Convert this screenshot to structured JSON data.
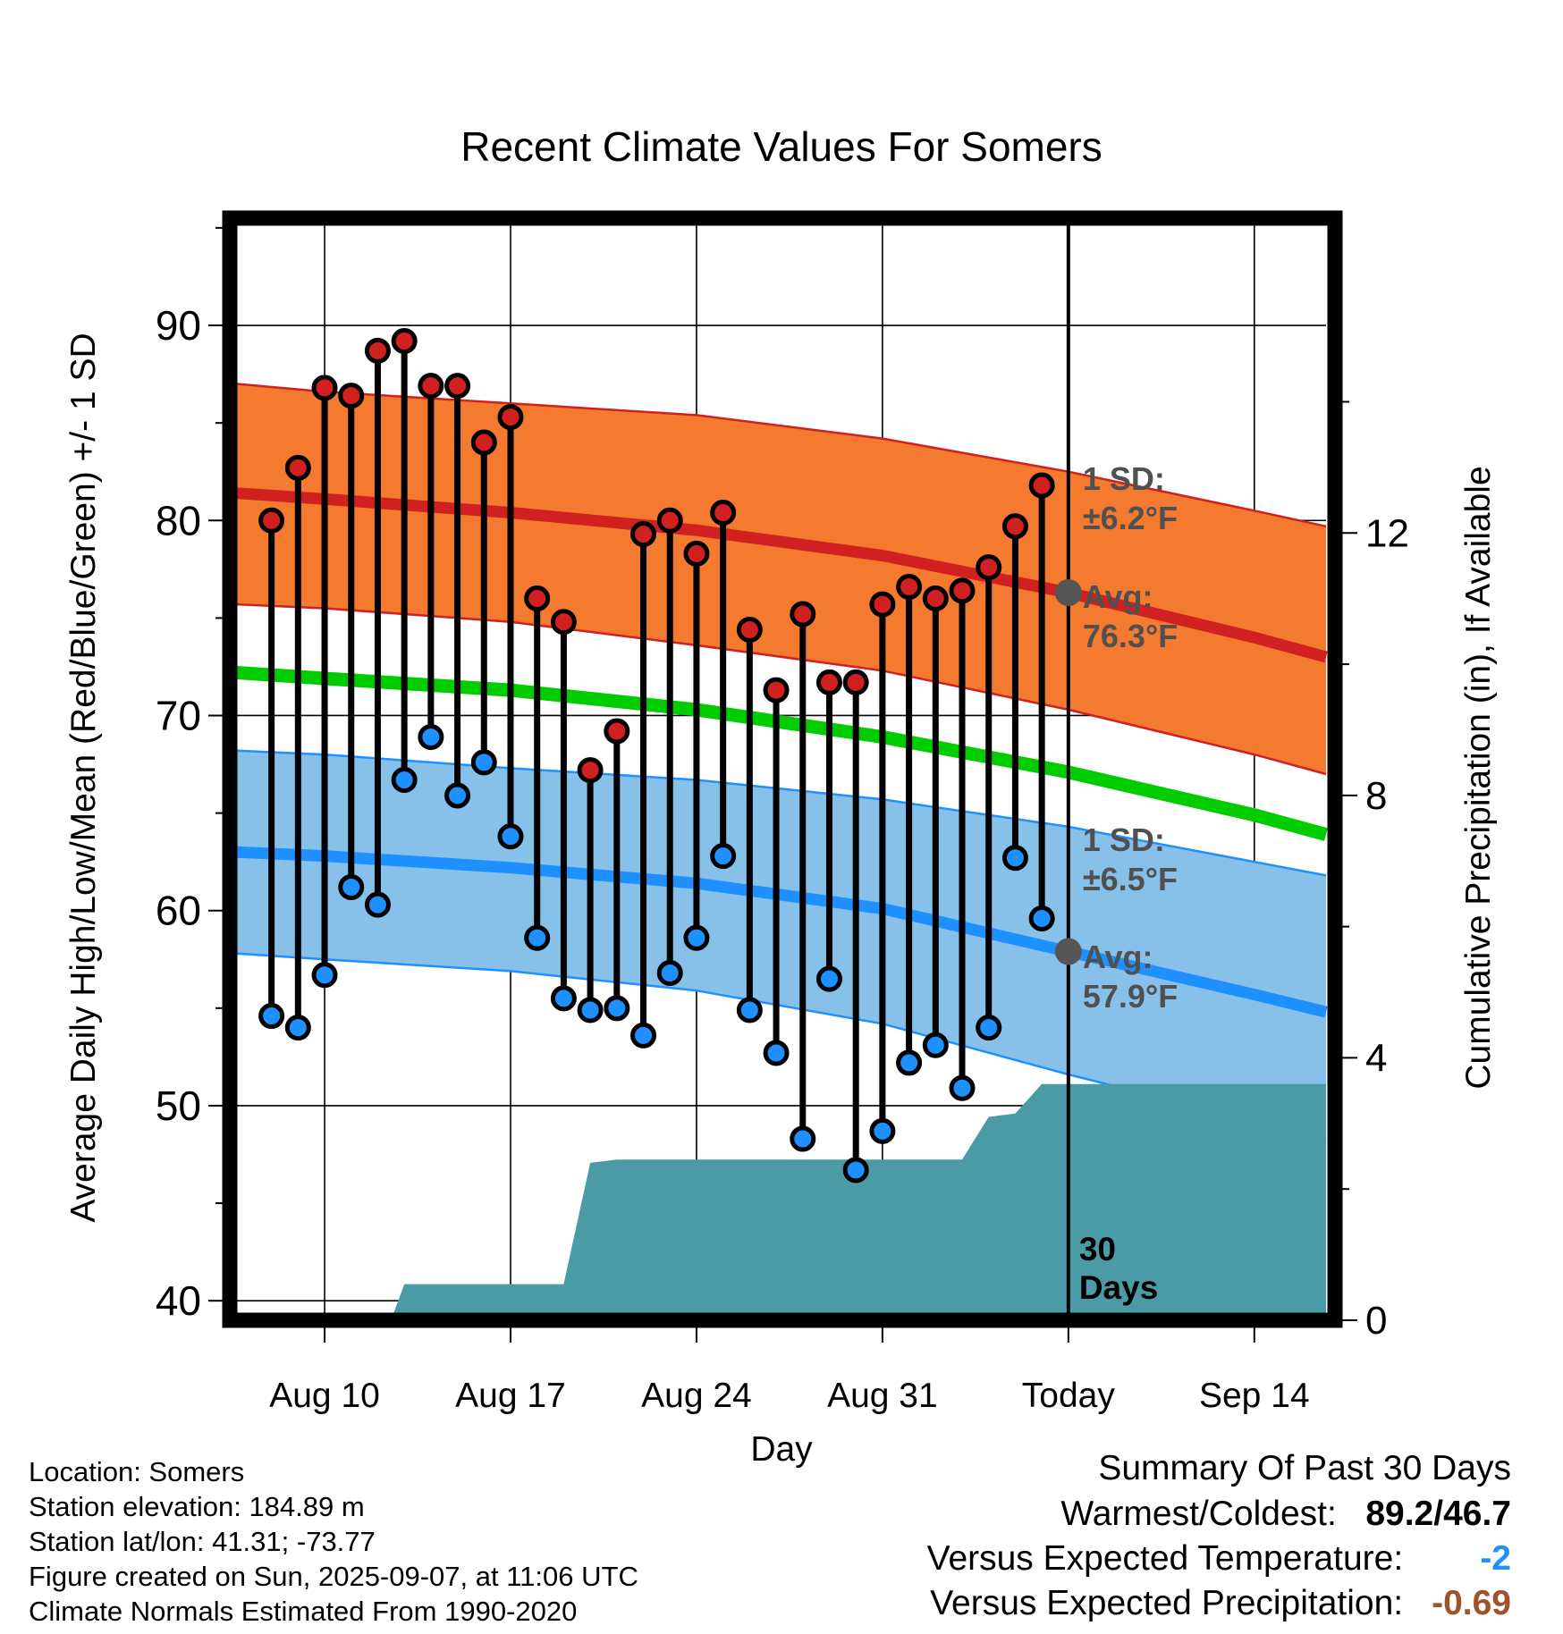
{
  "chart_data": {
    "type": "line",
    "title": "Recent Climate Values For Somers",
    "xlabel": "Day",
    "ylabel": "Average Daily High/Low/Mean (Red/Blue/Green) +/- 1 SD",
    "y2label": "Cumulative Precipitation (in), If Available",
    "ylim": [
      39,
      95.5
    ],
    "y2lim": [
      0,
      16.8
    ],
    "x_tick_labels": [
      "Aug 10",
      "Aug 17",
      "Aug 24",
      "Aug 31",
      "Today",
      "Sep 14"
    ],
    "x_tick_days": [
      10,
      17,
      24,
      31,
      38,
      45
    ],
    "y_ticks": [
      40,
      50,
      60,
      70,
      80,
      90
    ],
    "y2_ticks": [
      0,
      4,
      8,
      12
    ],
    "xlim": [
      6.7,
      47.7
    ],
    "grid": true,
    "today_day": 38,
    "today_annotation": "30 Days",
    "normals": {
      "days": [
        6.7,
        10,
        17,
        24,
        31,
        38,
        45,
        47.7
      ],
      "high_avg": [
        81.4,
        81.1,
        80.4,
        79.5,
        78.2,
        76.3,
        74.0,
        73.0
      ],
      "high_plus_sd": [
        87.0,
        86.6,
        86.0,
        85.4,
        84.2,
        82.5,
        80.5,
        79.7
      ],
      "high_minus_sd": [
        75.7,
        75.5,
        74.8,
        73.6,
        72.3,
        70.3,
        68.0,
        67.0
      ],
      "mean_avg": [
        72.2,
        71.9,
        71.3,
        70.3,
        68.9,
        67.1,
        64.9,
        63.9
      ],
      "low_avg": [
        63.0,
        62.8,
        62.2,
        61.4,
        60.1,
        57.9,
        55.7,
        54.8
      ],
      "low_plus_sd": [
        68.2,
        68.0,
        67.3,
        66.7,
        65.7,
        64.3,
        62.5,
        61.8
      ],
      "low_minus_sd": [
        57.8,
        57.5,
        56.9,
        55.9,
        54.2,
        51.6,
        49.2,
        48.0
      ]
    },
    "sd_labels": [
      {
        "label": "1 SD:",
        "value": "±6.2°F",
        "series": "high"
      },
      {
        "label": "1 SD:",
        "value": "±6.5°F",
        "series": "low"
      }
    ],
    "avg_labels": [
      {
        "label": "Avg:",
        "value": "76.3°F",
        "y": 76.3
      },
      {
        "label": "Avg:",
        "value": "57.9°F",
        "y": 57.9
      }
    ],
    "daily": {
      "days": [
        8,
        9,
        10,
        11,
        12,
        13,
        14,
        15,
        16,
        17,
        18,
        19,
        20,
        21,
        22,
        23,
        24,
        25,
        26,
        27,
        28,
        29,
        30,
        31,
        32,
        33,
        34,
        35,
        36,
        37
      ],
      "high": [
        80.0,
        82.7,
        86.8,
        86.4,
        88.7,
        89.2,
        86.9,
        86.9,
        84.0,
        85.3,
        76.0,
        74.8,
        67.2,
        69.2,
        79.3,
        80.0,
        78.3,
        80.4,
        74.4,
        71.3,
        75.2,
        71.7,
        71.7,
        75.7,
        76.6,
        76.0,
        76.4,
        77.6,
        79.7,
        81.8
      ],
      "low": [
        54.6,
        54.0,
        56.7,
        61.2,
        60.3,
        66.7,
        68.9,
        65.9,
        67.6,
        63.8,
        58.6,
        55.5,
        54.9,
        55.0,
        53.6,
        56.8,
        58.6,
        62.8,
        54.9,
        52.7,
        48.3,
        56.5,
        46.7,
        48.7,
        52.2,
        53.1,
        50.9,
        54.0,
        62.7,
        59.6
      ]
    },
    "precip": {
      "days": [
        6.7,
        9.5,
        12.5,
        13.0,
        19.0,
        20.0,
        21.0,
        34.0,
        35.0,
        36.0,
        37.0,
        47.7
      ],
      "values": [
        0,
        0,
        0,
        0.55,
        0.55,
        2.4,
        2.45,
        2.45,
        3.1,
        3.15,
        3.6,
        3.6
      ]
    },
    "colors": {
      "high_band": "#f47a30",
      "high_line": "#d02020",
      "low_band": "#87c1ea",
      "low_line": "#1e90ff",
      "mean_line": "#00cc00",
      "precip": "#4a9ba5",
      "high_dot": "#d02020",
      "low_dot": "#1e90ff",
      "avg_dot": "#555555",
      "label_gray": "#505050"
    }
  },
  "footer": {
    "location": "Location: Somers",
    "elevation": "Station elevation: 184.89 m",
    "latlon": "Station lat/lon: 41.31; -73.77",
    "created": "Figure created on Sun, 2025-09-07, at 11:06 UTC",
    "normals": "Climate Normals Estimated From 1990-2020"
  },
  "summary": {
    "title": "Summary Of Past 30 Days",
    "warmest_label": "Warmest/Coldest:",
    "warmest_high": "89.2",
    "warmest_sep": "/",
    "warmest_low": "46.7",
    "temp_label": "Versus Expected Temperature:",
    "temp_value": "-2",
    "temp_color": "#1e90ff",
    "precip_label": "Versus Expected Precipitation:",
    "precip_value": "-0.69",
    "precip_color": "#a0522d"
  }
}
